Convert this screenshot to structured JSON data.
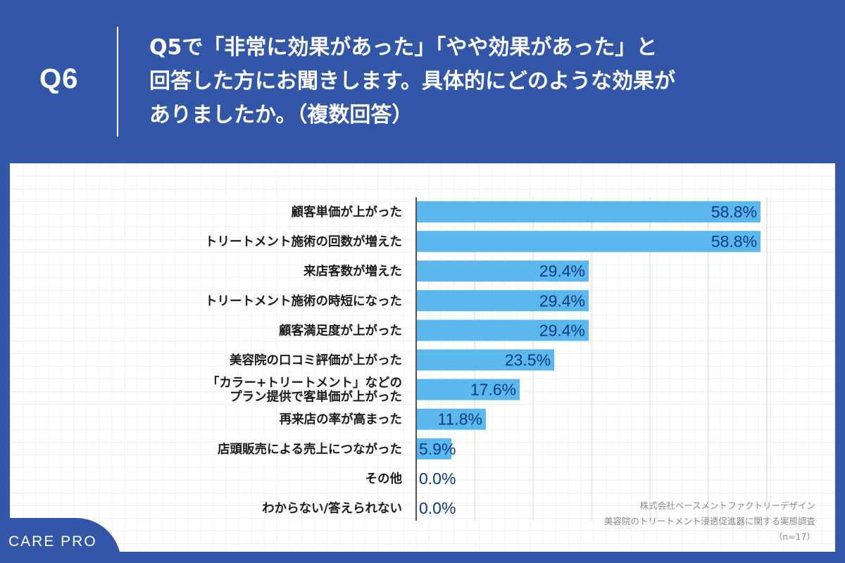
{
  "header": {
    "question_number": "Q6",
    "question_lines": [
      "Q5で「非常に効果があった」「やや効果があった」と",
      "回答した方にお聞きします。具体的にどのような効果が",
      "ありましたか。（複数回答）"
    ]
  },
  "chart_data": {
    "type": "bar",
    "orientation": "horizontal",
    "xlim": [
      0,
      60
    ],
    "gridlines_x": [
      0,
      10,
      20,
      30,
      40,
      50,
      60
    ],
    "bar_color": "#5bb8ef",
    "categories": [
      [
        "顧客単価が上がった"
      ],
      [
        "トリートメント施術の回数が増えた"
      ],
      [
        "来店客数が増えた"
      ],
      [
        "トリートメント施術の時短になった"
      ],
      [
        "顧客満足度が上がった"
      ],
      [
        "美容院の口コミ評価が上がった"
      ],
      [
        "「カラー+トリートメント」などの",
        "プラン提供で客単価が上がった"
      ],
      [
        "再来店の率が高まった"
      ],
      [
        "店頭販売による売上につながった"
      ],
      [
        "その他"
      ],
      [
        "わからない/答えられない"
      ]
    ],
    "values": [
      58.8,
      58.8,
      29.4,
      29.4,
      29.4,
      23.5,
      17.6,
      11.8,
      5.9,
      0.0,
      0.0
    ],
    "value_labels": [
      "58.8%",
      "58.8%",
      "29.4%",
      "29.4%",
      "29.4%",
      "23.5%",
      "17.6%",
      "11.8%",
      "5.9%",
      "0.0%",
      "0.0%"
    ]
  },
  "source": {
    "company": "株式会社ベースメントファクトリーデザイン",
    "survey": "美容院のトリートメント浸透促進器に関する実態調査",
    "sample": "（n=17）"
  },
  "logo": {
    "text": "CARE PRO"
  }
}
